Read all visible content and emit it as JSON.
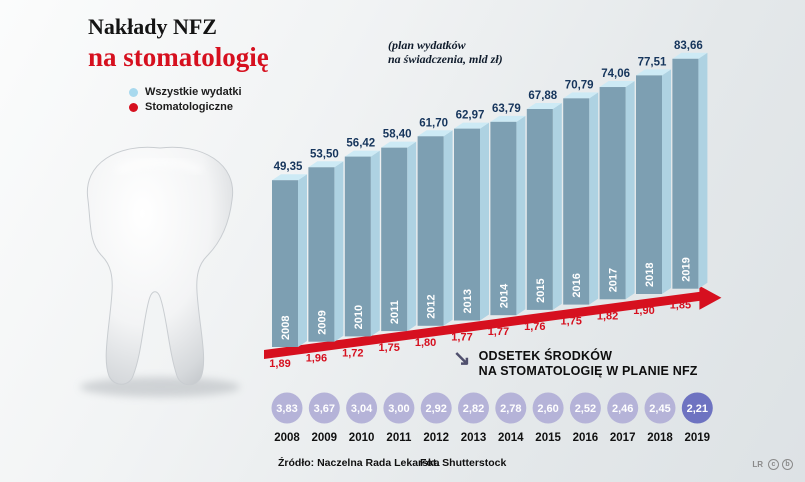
{
  "title": {
    "line1": "Nakłady NFZ",
    "line2": "na stomatologię"
  },
  "legend": [
    {
      "label": "Wszystkie wydatki",
      "color": "#a8d9ee"
    },
    {
      "label": "Stomatologiczne",
      "color": "#d6101f"
    }
  ],
  "note": {
    "line1": "(plan wydatków",
    "line2": "na świadczenia, mld zł)"
  },
  "percent_section": {
    "arrow": "↘",
    "line1": "ODSETEK ŚRODKÓW",
    "line2": "NA STOMATOLOGIĘ W PLANIE NFZ"
  },
  "footer": {
    "source": "Źródło: Naczelna Rada Lekarska",
    "photo_credit": "Fot. Shutterstock",
    "logo": "LR",
    "cc1": "c",
    "cc2": "b"
  },
  "colors": {
    "red": "#d6101f",
    "bar_front": "#7d9fb2",
    "bar_side": "#aed2e2",
    "bar_top": "#cdeaf5",
    "value_label": "#16355c",
    "circle": "#b5b3d8",
    "circle_last": "#6e73c1"
  },
  "chart_data": {
    "type": "bar",
    "title": "Nakłady NFZ na stomatologię",
    "subtitle": "(plan wydatków na świadczenia, mld zł)",
    "categories": [
      "2008",
      "2009",
      "2010",
      "2011",
      "2012",
      "2013",
      "2014",
      "2015",
      "2016",
      "2017",
      "2018",
      "2019"
    ],
    "series": [
      {
        "name": "Wszystkie wydatki (mld zł)",
        "values": [
          49.35,
          53.5,
          56.42,
          58.4,
          61.7,
          62.97,
          63.79,
          67.88,
          70.79,
          74.06,
          77.51,
          83.66
        ],
        "labels": [
          "49,35",
          "53,50",
          "56,42",
          "58,40",
          "61,70",
          "62,97",
          "63,79",
          "67,88",
          "70,79",
          "74,06",
          "77,51",
          "83,66"
        ]
      },
      {
        "name": "Stomatologiczne (mld zł)",
        "values": [
          1.89,
          1.96,
          1.72,
          1.75,
          1.8,
          1.77,
          1.77,
          1.76,
          1.75,
          1.82,
          1.9,
          1.85
        ],
        "labels": [
          "1,89",
          "1,96",
          "1,72",
          "1,75",
          "1,80",
          "1,77",
          "1,77",
          "1,76",
          "1,75",
          "1,82",
          "1,90",
          "1,85"
        ]
      },
      {
        "name": "Odsetek środków na stomatologię w planie NFZ (%)",
        "values": [
          3.83,
          3.67,
          3.04,
          3.0,
          2.92,
          2.82,
          2.78,
          2.6,
          2.52,
          2.46,
          2.45,
          2.21
        ],
        "labels": [
          "3,83",
          "3,67",
          "3,04",
          "3,00",
          "2,92",
          "2,82",
          "2,78",
          "2,60",
          "2,52",
          "2,46",
          "2,45",
          "2,21"
        ]
      }
    ],
    "legend_position": "top-left",
    "grid": false
  }
}
